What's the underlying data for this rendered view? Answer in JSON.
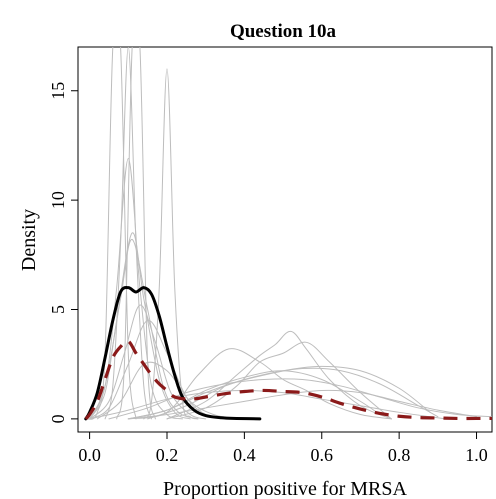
{
  "chart_data": {
    "type": "line",
    "title": "Question 10a",
    "xlabel": "Proportion positive for MRSA",
    "ylabel": "Density",
    "xlim": [
      -0.03,
      1.04
    ],
    "ylim": [
      -0.6,
      17.0
    ],
    "x_ticks": [
      "0.0",
      "0.2",
      "0.4",
      "0.6",
      "0.8",
      "1.0"
    ],
    "x_tick_values": [
      0.0,
      0.2,
      0.4,
      0.6,
      0.8,
      1.0
    ],
    "y_ticks": [
      "0",
      "5",
      "10",
      "15"
    ],
    "y_tick_values": [
      0,
      5,
      10,
      15
    ],
    "grid": false,
    "legend": "none",
    "series": [
      {
        "style": "grey",
        "color": "#bdbdbd",
        "x": [
          -0.01,
          0.02,
          0.04,
          0.06,
          0.08,
          0.1,
          0.12
        ],
        "y": [
          0,
          0.3,
          3.0,
          17.0,
          17.0,
          3.0,
          0
        ]
      },
      {
        "style": "grey",
        "color": "#bdbdbd",
        "x": [
          0.04,
          0.06,
          0.08,
          0.1,
          0.12,
          0.14,
          0.16
        ],
        "y": [
          0,
          1.5,
          8.0,
          17.0,
          8.0,
          1.5,
          0
        ]
      },
      {
        "style": "grey",
        "color": "#bdbdbd",
        "x": [
          0.07,
          0.09,
          0.11,
          0.13,
          0.15,
          0.17
        ],
        "y": [
          0,
          2.5,
          17.0,
          17.0,
          2.5,
          0
        ]
      },
      {
        "style": "grey",
        "color": "#bdbdbd",
        "x": [
          0.14,
          0.16,
          0.18,
          0.2,
          0.22,
          0.24,
          0.26,
          0.28
        ],
        "y": [
          0,
          0.8,
          6.0,
          16.0,
          6.0,
          0.8,
          0.1,
          0
        ]
      },
      {
        "style": "grey",
        "color": "#bdbdbd",
        "x": [
          0.0,
          0.04,
          0.07,
          0.1,
          0.13,
          0.16,
          0.2,
          0.24
        ],
        "y": [
          0,
          1.5,
          6.0,
          11.9,
          6.0,
          1.5,
          0.2,
          0
        ]
      },
      {
        "style": "grey",
        "color": "#bdbdbd",
        "x": [
          0.0,
          0.04,
          0.07,
          0.11,
          0.14,
          0.18,
          0.22,
          0.26
        ],
        "y": [
          0,
          1.2,
          4.5,
          8.5,
          5.5,
          1.8,
          0.3,
          0
        ]
      },
      {
        "style": "grey",
        "color": "#bdbdbd",
        "x": [
          0.0,
          0.04,
          0.08,
          0.11,
          0.15,
          0.19,
          0.23,
          0.28
        ],
        "y": [
          0,
          1.5,
          5.5,
          8.2,
          5.0,
          1.5,
          0.3,
          0
        ]
      },
      {
        "style": "grey",
        "color": "#bdbdbd",
        "x": [
          0.0,
          0.05,
          0.09,
          0.13,
          0.17,
          0.21,
          0.26,
          0.3
        ],
        "y": [
          0,
          0.8,
          3.0,
          5.2,
          3.5,
          1.2,
          0.2,
          0
        ]
      },
      {
        "style": "grey",
        "color": "#bdbdbd",
        "x": [
          0.0,
          0.05,
          0.1,
          0.15,
          0.2,
          0.25,
          0.3,
          0.35
        ],
        "y": [
          0,
          0.5,
          2.5,
          4.5,
          3.0,
          1.0,
          0.2,
          0
        ]
      },
      {
        "style": "grey",
        "color": "#bdbdbd",
        "x": [
          0.02,
          0.08,
          0.14,
          0.2,
          0.26,
          0.32,
          0.38
        ],
        "y": [
          0,
          0.8,
          2.5,
          2.2,
          0.8,
          0.2,
          0
        ]
      },
      {
        "style": "grey",
        "color": "#bdbdbd",
        "x": [
          0.1,
          0.2,
          0.28,
          0.36,
          0.44,
          0.5,
          0.56,
          0.62,
          0.7,
          0.78
        ],
        "y": [
          0,
          0.3,
          2.0,
          3.2,
          2.6,
          1.8,
          1.3,
          0.7,
          0.2,
          0
        ]
      },
      {
        "style": "grey",
        "color": "#bdbdbd",
        "x": [
          0.2,
          0.3,
          0.38,
          0.44,
          0.48,
          0.52,
          0.56,
          0.62,
          0.7,
          0.78
        ],
        "y": [
          0,
          0.8,
          2.0,
          2.9,
          3.4,
          4.0,
          3.2,
          1.8,
          0.6,
          0
        ]
      },
      {
        "style": "grey",
        "color": "#bdbdbd",
        "x": [
          0.2,
          0.3,
          0.38,
          0.44,
          0.5,
          0.56,
          0.62,
          0.7,
          0.78
        ],
        "y": [
          0,
          0.5,
          1.5,
          2.6,
          3.0,
          3.5,
          2.6,
          1.2,
          0
        ]
      },
      {
        "style": "grey",
        "color": "#bdbdbd",
        "x": [
          0.05,
          0.15,
          0.25,
          0.35,
          0.45,
          0.55,
          0.65,
          0.75,
          0.85,
          0.95,
          1.04
        ],
        "y": [
          0,
          0.5,
          1.2,
          1.6,
          1.8,
          1.8,
          1.5,
          1.0,
          0.5,
          0.2,
          0.1
        ]
      },
      {
        "style": "grey",
        "color": "#bdbdbd",
        "x": [
          0.1,
          0.2,
          0.3,
          0.4,
          0.5,
          0.6,
          0.7,
          0.8,
          0.88
        ],
        "y": [
          0,
          0.4,
          1.2,
          1.8,
          2.2,
          2.4,
          2.2,
          1.4,
          0.3
        ]
      },
      {
        "style": "grey",
        "color": "#bdbdbd",
        "x": [
          0.15,
          0.25,
          0.35,
          0.45,
          0.55,
          0.65,
          0.75,
          0.85,
          0.9
        ],
        "y": [
          0,
          0.6,
          1.5,
          2.0,
          2.3,
          2.2,
          1.6,
          0.6,
          0.1
        ]
      },
      {
        "style": "grey",
        "color": "#bdbdbd",
        "x": [
          0.1,
          0.2,
          0.3,
          0.4,
          0.5,
          0.6,
          0.7,
          0.75
        ],
        "y": [
          0,
          0.4,
          1.3,
          1.9,
          2.2,
          1.8,
          0.8,
          0.2
        ]
      },
      {
        "style": "grey",
        "color": "#bdbdbd",
        "x": [
          0.0,
          0.1,
          0.2,
          0.3,
          0.4,
          0.5,
          0.6,
          0.7,
          0.8,
          0.92
        ],
        "y": [
          0,
          0.4,
          0.9,
          1.2,
          1.3,
          1.2,
          0.9,
          0.6,
          0.3,
          0
        ]
      },
      {
        "style": "grey",
        "color": "#bdbdbd",
        "x": [
          0.1,
          0.2,
          0.3,
          0.4,
          0.5,
          0.6,
          0.7,
          0.8,
          0.9,
          1.0
        ],
        "y": [
          0,
          0.2,
          0.5,
          0.8,
          1.1,
          1.3,
          1.2,
          0.8,
          0.4,
          0.1
        ]
      },
      {
        "style": "black",
        "color": "#000000",
        "x": [
          -0.01,
          0.0,
          0.02,
          0.04,
          0.06,
          0.08,
          0.1,
          0.12,
          0.14,
          0.16,
          0.18,
          0.2,
          0.22,
          0.24,
          0.27,
          0.3,
          0.34,
          0.38,
          0.44
        ],
        "y": [
          0.0,
          0.3,
          1.2,
          2.8,
          4.5,
          5.8,
          6.0,
          5.8,
          6.0,
          5.7,
          4.7,
          3.3,
          2.0,
          1.0,
          0.4,
          0.15,
          0.05,
          0.02,
          0.0
        ]
      },
      {
        "style": "dashed",
        "color": "#8b1a1a",
        "x": [
          -0.01,
          0.0,
          0.02,
          0.04,
          0.06,
          0.08,
          0.1,
          0.12,
          0.14,
          0.16,
          0.18,
          0.2,
          0.22,
          0.26,
          0.3,
          0.35,
          0.4,
          0.45,
          0.5,
          0.55,
          0.6,
          0.65,
          0.7,
          0.75,
          0.8,
          0.85,
          0.9,
          0.95,
          1.0,
          1.04
        ],
        "y": [
          0.0,
          0.2,
          0.8,
          1.8,
          2.8,
          3.3,
          3.55,
          3.0,
          2.5,
          2.0,
          1.6,
          1.3,
          1.0,
          0.9,
          1.0,
          1.15,
          1.25,
          1.3,
          1.25,
          1.2,
          1.0,
          0.7,
          0.45,
          0.25,
          0.12,
          0.06,
          0.04,
          0.02,
          0.02,
          0.02
        ]
      }
    ]
  }
}
